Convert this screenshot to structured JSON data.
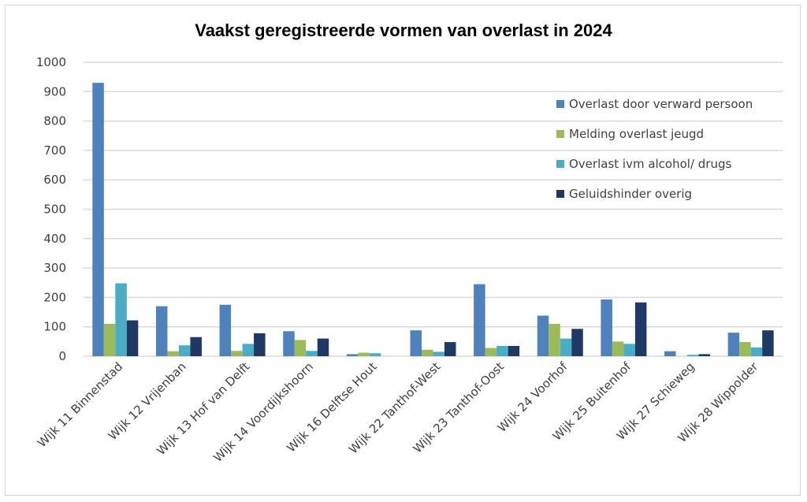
{
  "chart_data": {
    "type": "bar",
    "title": "Vaakst geregistreerde vormen van overlast in 2024",
    "xlabel": "",
    "ylabel": "",
    "ylim": [
      0,
      1000
    ],
    "yticks": [
      0,
      100,
      200,
      300,
      400,
      500,
      600,
      700,
      800,
      900,
      1000
    ],
    "grid": true,
    "legend_position": "top-right",
    "categories": [
      "Wijk 11 Binnenstad",
      "Wijk 12 Vrijenban",
      "Wijk 13 Hof van Delft",
      "Wijk 14 Voordijkshoorn",
      "Wijk 16 Delftse Hout",
      "Wijk 22 Tanthof-West",
      "Wijk 23 Tanthof-Oost",
      "Wijk 24 Voorhof",
      "Wijk 25 Buitenhof",
      "Wijk 27 Schieweg",
      "Wijk 28 Wippolder"
    ],
    "series": [
      {
        "name": "Overlast door verward persoon",
        "color": "#4f81bd",
        "values": [
          930,
          170,
          175,
          85,
          7,
          88,
          245,
          138,
          193,
          17,
          80
        ]
      },
      {
        "name": "Melding overlast jeugd",
        "color": "#9bbb59",
        "values": [
          110,
          17,
          18,
          55,
          12,
          22,
          28,
          110,
          50,
          0,
          48
        ]
      },
      {
        "name": "Overlast ivm alcohol/ drugs",
        "color": "#4bacc6",
        "values": [
          248,
          37,
          42,
          18,
          10,
          15,
          35,
          60,
          42,
          5,
          30
        ]
      },
      {
        "name": "Geluidshinder overig",
        "color": "#1f3864",
        "values": [
          122,
          65,
          78,
          60,
          0,
          48,
          35,
          93,
          183,
          7,
          88
        ]
      }
    ]
  }
}
